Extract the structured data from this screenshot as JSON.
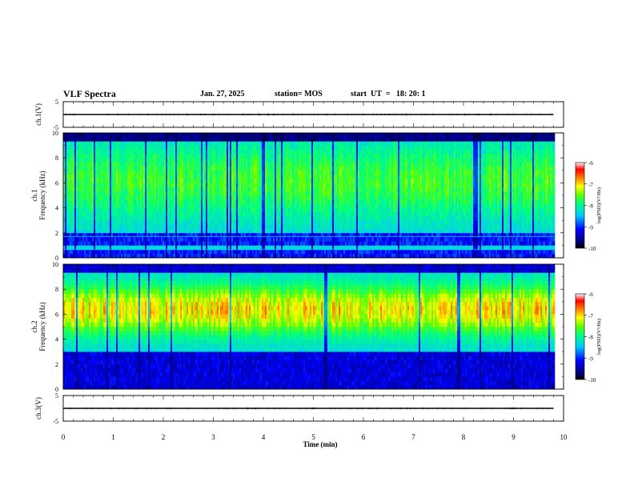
{
  "header": {
    "title": "VLF Spectra",
    "date": "Jan. 27, 2025",
    "station": "station= MOS",
    "start_ut": "start  UT  =   18: 20: 1"
  },
  "chart_data": [
    {
      "type": "line",
      "panel": "ch1-waveform",
      "ylabel": "ch.1(V)",
      "ylim": [
        -5,
        5
      ],
      "y_ticks": [
        "5",
        "-5"
      ],
      "x": [
        0,
        9.8
      ],
      "values": [
        0,
        0
      ],
      "xlim": [
        0,
        10
      ]
    },
    {
      "type": "heatmap",
      "panel": "ch1-spectrogram",
      "ylabel_line1": "ch.1",
      "ylabel_line2": "Frequency (kHz)",
      "ylim": [
        0,
        10
      ],
      "y_ticks": [
        "0",
        "2",
        "4",
        "6",
        "8",
        "10"
      ],
      "xlim": [
        0,
        10
      ],
      "data_end_min": 9.8,
      "colorbar": {
        "label": "log(PSD)(V²/Hz)",
        "range": [
          -10,
          -6
        ],
        "ticks": [
          "-6",
          "-7",
          "-8",
          "-9",
          "-10"
        ]
      }
    },
    {
      "type": "heatmap",
      "panel": "ch2-spectrogram",
      "ylabel_line1": "ch.2",
      "ylabel_line2": "Frequency (kHz)",
      "ylim": [
        0,
        10
      ],
      "y_ticks": [
        "0",
        "2",
        "4",
        "6",
        "8",
        "10"
      ],
      "xlim": [
        0,
        10
      ],
      "data_end_min": 9.8,
      "colorbar": {
        "label": "log(PSD)(V²/Hz)",
        "range": [
          -10,
          -6
        ],
        "ticks": [
          "-6",
          "-7",
          "-8",
          "-9",
          "-10"
        ]
      }
    },
    {
      "type": "line",
      "panel": "ch3-waveform",
      "ylabel": "ch.3(V)",
      "ylim": [
        -5,
        5
      ],
      "y_ticks": [
        "5",
        "-5"
      ],
      "x": [
        0,
        9.8
      ],
      "values": [
        0,
        0
      ],
      "xlim": [
        0,
        10
      ]
    }
  ],
  "x_axis": {
    "label": "Time  (min)",
    "ticks": [
      "0",
      "1",
      "2",
      "3",
      "4",
      "5",
      "6",
      "7",
      "8",
      "9",
      "10"
    ]
  }
}
